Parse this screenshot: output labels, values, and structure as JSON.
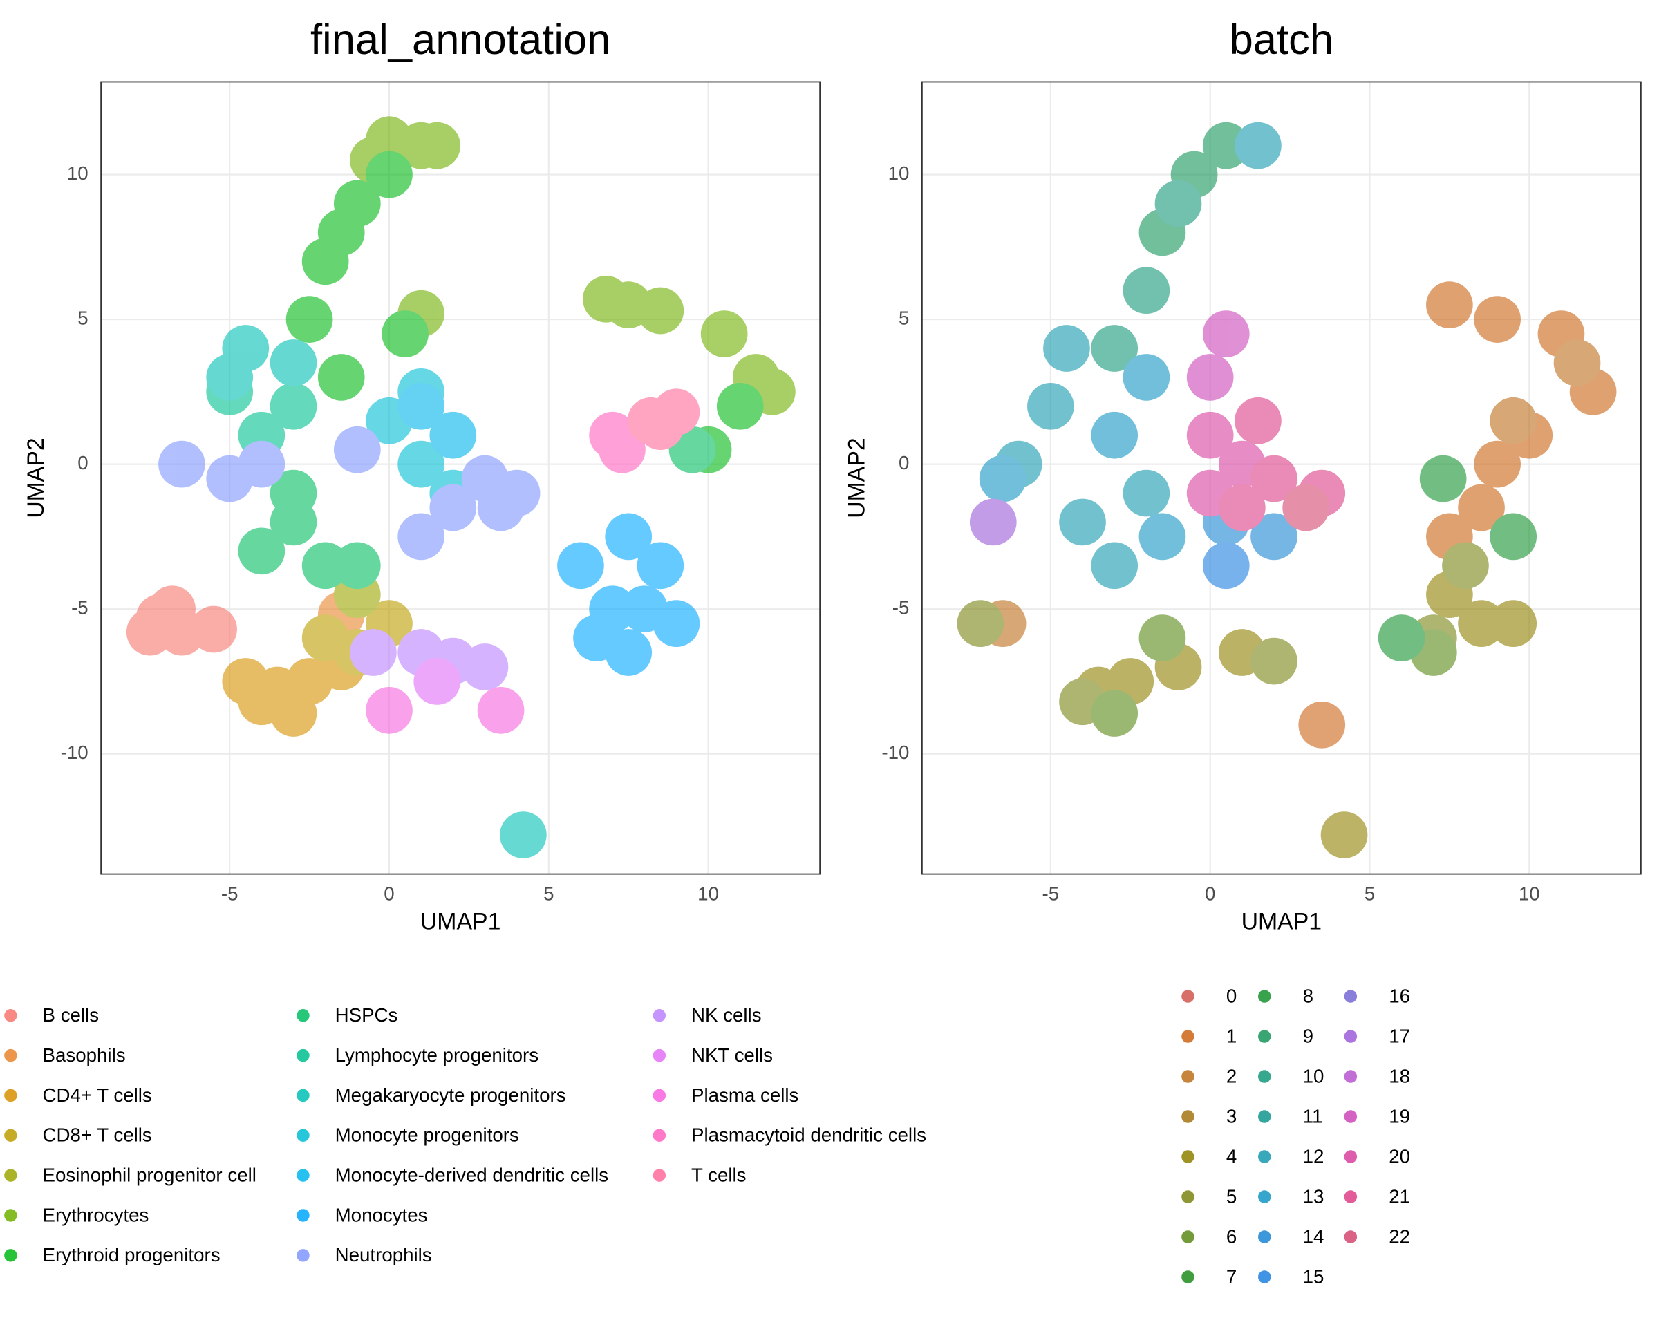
{
  "chart_data": [
    {
      "type": "scatter",
      "title": "final_annotation",
      "x_label": "UMAP1",
      "y_label": "UMAP2",
      "xlim": [
        -9.03,
        13.5
      ],
      "ylim": [
        -14.15,
        13.2
      ],
      "xticks": [
        -5,
        0,
        5,
        10
      ],
      "yticks": [
        -10,
        -5,
        0,
        5,
        10
      ],
      "grid": true,
      "series": [
        {
          "name": "B cells",
          "color": "#F8766D",
          "x": [
            -7.2,
            -6.5,
            -7.5,
            -6.8,
            -5.5
          ],
          "y": [
            -5.3,
            -5.8,
            -5.8,
            -5,
            -5.7
          ]
        },
        {
          "name": "Basophils",
          "color": "#E9842C",
          "x": [
            -1.5
          ],
          "y": [
            -5.2
          ]
        },
        {
          "name": "CD4+ T cells",
          "color": "#D69100",
          "x": [
            -3.5,
            -2.5,
            -4,
            -3,
            -1.5,
            -4.5
          ],
          "y": [
            -7.8,
            -7.5,
            -8.2,
            -8.6,
            -7,
            -7.5
          ]
        },
        {
          "name": "CD8+ T cells",
          "color": "#BC9D00",
          "x": [
            -1,
            -2,
            0
          ],
          "y": [
            -6.5,
            -6,
            -5.5
          ]
        },
        {
          "name": "Eosinophil progenitor cell",
          "color": "#9CA700",
          "x": [
            -1
          ],
          "y": [
            -4.5
          ]
        },
        {
          "name": "Erythrocytes",
          "color": "#6FB000",
          "x": [
            1,
            0,
            1.5,
            -0.5,
            7.5,
            8.5,
            6.8,
            1,
            11.5,
            10.5,
            12
          ],
          "y": [
            11,
            11.2,
            11,
            10.5,
            5.5,
            5.3,
            5.7,
            5.2,
            3,
            4.5,
            2.5
          ]
        },
        {
          "name": "Erythroid progenitors",
          "color": "#00B813",
          "x": [
            -1,
            -2,
            -2.5,
            -1.5,
            0,
            0.5,
            -1.5,
            11,
            10
          ],
          "y": [
            9,
            7,
            5,
            8,
            10,
            4.5,
            3,
            2,
            0.5
          ]
        },
        {
          "name": "HSPCs",
          "color": "#00BD61",
          "x": [
            -3,
            -2,
            -4,
            -3,
            -1,
            9.5
          ],
          "y": [
            -2,
            -3.5,
            -3,
            -1,
            -3.5,
            0.5
          ]
        },
        {
          "name": "Lymphocyte progenitors",
          "color": "#00C08E",
          "x": [
            -4,
            -3,
            -5
          ],
          "y": [
            1,
            2,
            2.5
          ]
        },
        {
          "name": "Megakaryocyte progenitors",
          "color": "#00C0B4",
          "x": [
            -4.5,
            -5,
            -3,
            4.2
          ],
          "y": [
            4,
            3,
            3.5,
            -12.8
          ]
        },
        {
          "name": "Monocyte progenitors",
          "color": "#00BDD4",
          "x": [
            0,
            1,
            2,
            1
          ],
          "y": [
            1.5,
            0,
            -1,
            2.5
          ]
        },
        {
          "name": "Monocyte-derived dendritic cells",
          "color": "#00B5EE",
          "x": [
            1,
            2
          ],
          "y": [
            2,
            1
          ]
        },
        {
          "name": "Monocytes",
          "color": "#00A7FF",
          "x": [
            7,
            8,
            9,
            7.5,
            6.5,
            8.5,
            7.5,
            6
          ],
          "y": [
            -5,
            -5,
            -5.5,
            -6.5,
            -6,
            -3.5,
            -2.5,
            -3.5
          ]
        },
        {
          "name": "Neutrophils",
          "color": "#7F96FF",
          "x": [
            -6.5,
            -5,
            -4,
            2,
            3.5,
            3,
            1,
            4,
            -1
          ],
          "y": [
            0,
            -0.5,
            0,
            -1.5,
            -1.5,
            -0.5,
            -2.5,
            -1,
            0.5
          ]
        },
        {
          "name": "NK cells",
          "color": "#BC81FF",
          "x": [
            1,
            2,
            -0.5,
            3
          ],
          "y": [
            -6.5,
            -6.8,
            -6.5,
            -7
          ]
        },
        {
          "name": "NKT cells",
          "color": "#E26EF7",
          "x": [
            1.5
          ],
          "y": [
            -7.5
          ]
        },
        {
          "name": "Plasma cells",
          "color": "#F863DF",
          "x": [
            0,
            3.5
          ],
          "y": [
            -8.5,
            -8.5
          ]
        },
        {
          "name": "Plasmacytoid dendritic cells",
          "color": "#FF62BF",
          "x": [
            7.3,
            7
          ],
          "y": [
            0.5,
            1
          ]
        },
        {
          "name": "T cells",
          "color": "#FF6A9A",
          "x": [
            8.5,
            8.2,
            9
          ],
          "y": [
            1.3,
            1.5,
            1.8
          ]
        }
      ]
    },
    {
      "type": "scatter",
      "title": "batch",
      "x_label": "UMAP1",
      "y_label": "UMAP2",
      "xlim": [
        -9.03,
        13.5
      ],
      "ylim": [
        -14.15,
        13.2
      ],
      "xticks": [
        -5,
        0,
        5,
        10
      ],
      "yticks": [
        -10,
        -5,
        0,
        5,
        10
      ],
      "grid": true,
      "series": [
        {
          "name": "0",
          "color": "#D0574E",
          "x": [],
          "y": []
        },
        {
          "name": "1",
          "color": "#CC6414",
          "x": [
            7.5,
            9,
            11,
            12,
            10,
            9,
            7.5,
            8.5,
            3.5
          ],
          "y": [
            5.5,
            5,
            4.5,
            2.5,
            1,
            0,
            -2.5,
            -1.5,
            -9
          ]
        },
        {
          "name": "2",
          "color": "#BD6E1B",
          "x": [
            11.5,
            9.5,
            -6.5
          ],
          "y": [
            3.5,
            1.5,
            -5.5
          ]
        },
        {
          "name": "3",
          "color": "#A57412",
          "x": [],
          "y": []
        },
        {
          "name": "4",
          "color": "#8F8000",
          "x": [
            -3.5,
            -2.5,
            -1,
            1,
            8.5,
            7.5,
            9.5,
            4.2
          ],
          "y": [
            -7.8,
            -7.5,
            -7,
            -6.5,
            -5.5,
            -4.5,
            -5.5,
            -12.8
          ]
        },
        {
          "name": "5",
          "color": "#7A8412",
          "x": [
            -4,
            -7.2,
            2,
            7,
            8
          ],
          "y": [
            -8.2,
            -5.5,
            -6.8,
            -6,
            -3.5
          ]
        },
        {
          "name": "6",
          "color": "#5A8A16",
          "x": [
            -3,
            -1.5,
            7
          ],
          "y": [
            -8.6,
            -6,
            -6.5
          ]
        },
        {
          "name": "7",
          "color": "#1E8C1E",
          "x": [],
          "y": []
        },
        {
          "name": "8",
          "color": "#16922E",
          "x": [
            9.5,
            6,
            7.3
          ],
          "y": [
            -2.5,
            -6,
            -0.5
          ]
        },
        {
          "name": "9",
          "color": "#16955A",
          "x": [
            0.5,
            -0.5,
            -1.5
          ],
          "y": [
            11,
            10,
            8
          ]
        },
        {
          "name": "10",
          "color": "#14987A",
          "x": [
            -2,
            -1,
            -3
          ],
          "y": [
            6,
            9,
            4
          ]
        },
        {
          "name": "11",
          "color": "#12958E",
          "x": [],
          "y": []
        },
        {
          "name": "12",
          "color": "#1699AE",
          "x": [
            -5,
            -6,
            -4,
            -3,
            -2,
            1.5,
            -4.5
          ],
          "y": [
            2,
            0,
            -2,
            -3.5,
            -1,
            11,
            4
          ]
        },
        {
          "name": "13",
          "color": "#1496C4",
          "x": [
            -3,
            -2,
            -1.5,
            -6.5
          ],
          "y": [
            1,
            3,
            -2.5,
            -0.5
          ]
        },
        {
          "name": "14",
          "color": "#1A86D4",
          "x": [
            0.5,
            2
          ],
          "y": [
            -2,
            -2.5
          ]
        },
        {
          "name": "15",
          "color": "#2080E0",
          "x": [
            0.5
          ],
          "y": [
            -3.5
          ]
        },
        {
          "name": "16",
          "color": "#7468D4",
          "x": [],
          "y": []
        },
        {
          "name": "17",
          "color": "#9C5CD8",
          "x": [
            -6.8
          ],
          "y": [
            -2
          ]
        },
        {
          "name": "18",
          "color": "#B655D0",
          "x": [],
          "y": []
        },
        {
          "name": "19",
          "color": "#CC46B8",
          "x": [
            0.5,
            0
          ],
          "y": [
            4.5,
            3
          ]
        },
        {
          "name": "20",
          "color": "#D8409E",
          "x": [
            0,
            1,
            0
          ],
          "y": [
            1,
            0,
            -1
          ]
        },
        {
          "name": "21",
          "color": "#DC3F86",
          "x": [
            1,
            2,
            3.5,
            1.5
          ],
          "y": [
            -1.5,
            -0.5,
            -1,
            1.5
          ]
        },
        {
          "name": "22",
          "color": "#D44770",
          "x": [
            3
          ],
          "y": [
            -1.5
          ]
        }
      ]
    }
  ]
}
